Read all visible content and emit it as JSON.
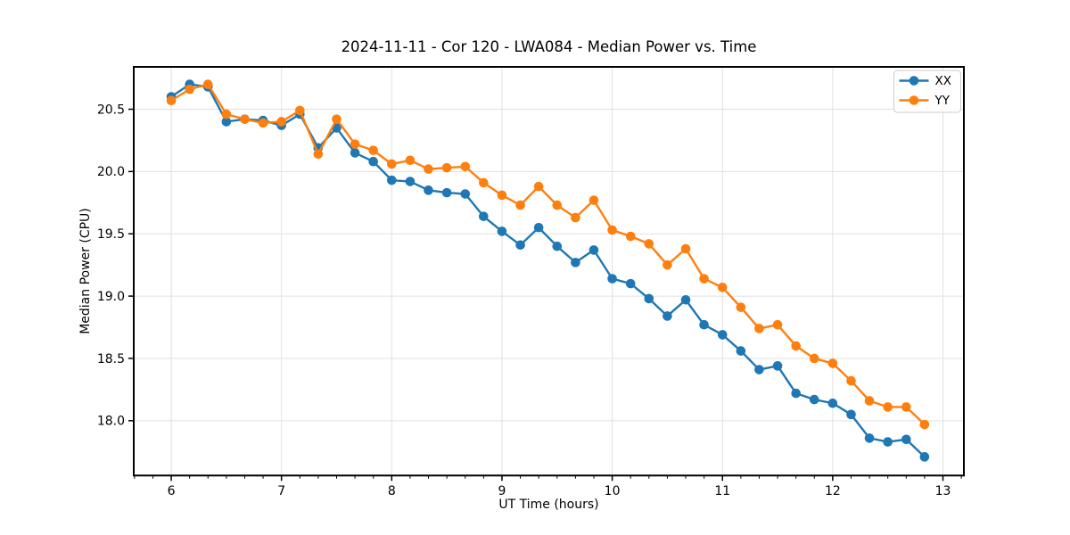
{
  "chart_data": {
    "type": "line",
    "title": "2024-11-11 - Cor 120 - LWA084 - Median Power vs. Time",
    "xlabel": "UT Time (hours)",
    "ylabel": "Median Power (CPU)",
    "x": [
      6.0,
      6.167,
      6.333,
      6.5,
      6.667,
      6.833,
      7.0,
      7.167,
      7.333,
      7.5,
      7.667,
      7.833,
      8.0,
      8.167,
      8.333,
      8.5,
      8.667,
      8.833,
      9.0,
      9.167,
      9.333,
      9.5,
      9.667,
      9.833,
      10.0,
      10.167,
      10.333,
      10.5,
      10.667,
      10.833,
      11.0,
      11.167,
      11.333,
      11.5,
      11.667,
      11.833,
      12.0,
      12.167,
      12.333,
      12.5,
      12.667,
      12.833
    ],
    "series": [
      {
        "name": "XX",
        "color": "#1f77b4",
        "values": [
          20.6,
          20.7,
          20.68,
          20.4,
          20.42,
          20.41,
          20.37,
          20.46,
          20.19,
          20.35,
          20.15,
          20.08,
          19.93,
          19.92,
          19.85,
          19.83,
          19.82,
          19.64,
          19.52,
          19.41,
          19.55,
          19.4,
          19.27,
          19.37,
          19.14,
          19.1,
          18.98,
          18.84,
          18.97,
          18.77,
          18.69,
          18.56,
          18.41,
          18.44,
          18.22,
          18.17,
          18.14,
          18.05,
          17.86,
          17.83,
          17.85,
          17.71
        ]
      },
      {
        "name": "YY",
        "color": "#ff7f0e",
        "values": [
          20.57,
          20.66,
          20.7,
          20.46,
          20.42,
          20.39,
          20.4,
          20.49,
          20.14,
          20.42,
          20.22,
          20.17,
          20.06,
          20.09,
          20.02,
          20.03,
          20.04,
          19.91,
          19.81,
          19.73,
          19.88,
          19.73,
          19.63,
          19.77,
          19.53,
          19.48,
          19.42,
          19.25,
          19.38,
          19.14,
          19.07,
          18.91,
          18.74,
          18.77,
          18.6,
          18.5,
          18.46,
          18.32,
          18.16,
          18.11,
          18.11,
          17.97
        ]
      }
    ],
    "xlim": [
      5.66,
      13.19
    ],
    "ylim": [
      17.56,
      20.84
    ],
    "xticks": {
      "values": [
        6,
        7,
        8,
        9,
        10,
        11,
        12,
        13
      ],
      "labels": [
        "6",
        "7",
        "8",
        "9",
        "10",
        "11",
        "12",
        "13"
      ]
    },
    "yticks": {
      "values": [
        18.0,
        18.5,
        19.0,
        19.5,
        20.0,
        20.5
      ],
      "labels": [
        "18.0",
        "18.5",
        "19.0",
        "19.5",
        "20.0",
        "20.5"
      ]
    },
    "minor_xtick_interval": 0.16667,
    "grid": true,
    "grid_color": "#e0e0e0",
    "marker": "o",
    "legend": {
      "position": "upper right",
      "items": [
        "XX",
        "YY"
      ]
    }
  }
}
